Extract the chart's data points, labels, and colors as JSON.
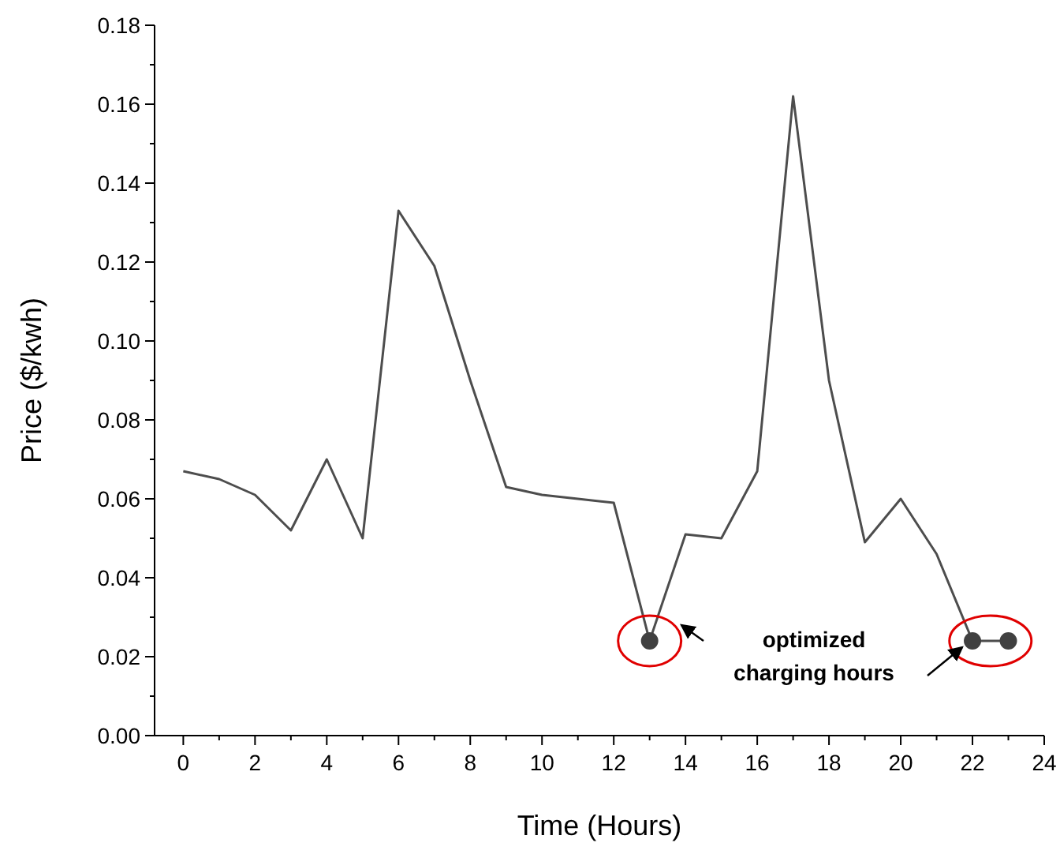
{
  "chart_data": {
    "type": "line",
    "xlabel": "Time (Hours)",
    "ylabel": "Price ($/kwh)",
    "x": [
      0,
      1,
      2,
      3,
      4,
      5,
      6,
      7,
      8,
      9,
      10,
      11,
      12,
      13,
      14,
      15,
      16,
      17,
      18,
      19,
      20,
      21,
      22,
      23
    ],
    "series": [
      {
        "color": "#4d4d4d",
        "values": [
          0.067,
          0.065,
          0.061,
          0.052,
          0.07,
          0.05,
          0.133,
          0.119,
          0.09,
          0.063,
          0.061,
          0.06,
          0.059,
          0.024,
          0.051,
          0.05,
          0.067,
          0.162,
          0.09,
          0.049,
          0.06,
          0.046,
          0.024,
          0.024
        ],
        "marker": "none"
      },
      {
        "type": "scatter",
        "color": "#404040",
        "x": [
          13,
          22,
          23
        ],
        "values": [
          0.024,
          0.024,
          0.024
        ],
        "marker": "circle"
      }
    ],
    "xlim": [
      -0.8,
      24
    ],
    "ylim": [
      0,
      0.18
    ],
    "xticks": [
      0,
      {
        "value": 1,
        "label": null
      },
      2,
      {
        "value": 3,
        "label": null
      },
      4,
      {
        "value": 5,
        "label": null
      },
      6,
      {
        "value": 7,
        "label": null
      },
      8,
      {
        "value": 9,
        "label": null
      },
      10,
      {
        "value": 11,
        "label": null
      },
      12,
      {
        "value": 13,
        "label": null
      },
      14,
      {
        "value": 15,
        "label": null
      },
      16,
      {
        "value": 17,
        "label": null
      },
      18,
      {
        "value": 19,
        "label": null
      },
      20,
      {
        "value": 21,
        "label": null
      },
      22,
      {
        "value": 23,
        "label": null
      },
      24
    ],
    "yticks": [
      {
        "value": 0,
        "label": "0.00"
      },
      {
        "value": 0.01,
        "label": null
      },
      {
        "value": 0.02,
        "label": "0.02"
      },
      {
        "value": 0.03,
        "label": null
      },
      {
        "value": 0.04,
        "label": "0.04"
      },
      {
        "value": 0.05,
        "label": null
      },
      {
        "value": 0.06,
        "label": "0.06"
      },
      {
        "value": 0.07,
        "label": null
      },
      {
        "value": 0.08,
        "label": "0.08"
      },
      {
        "value": 0.09,
        "label": null
      },
      {
        "value": 0.1,
        "label": "0.10"
      },
      {
        "value": 0.11,
        "label": null
      },
      {
        "value": 0.12,
        "label": "0.12"
      },
      {
        "value": 0.13,
        "label": null
      },
      {
        "value": 0.14,
        "label": "0.14"
      },
      {
        "value": 0.15,
        "label": null
      },
      {
        "value": 0.16,
        "label": "0.16"
      },
      {
        "value": 0.17,
        "label": null
      },
      {
        "value": 0.18,
        "label": "0.18"
      }
    ],
    "grid": false,
    "annotations": [
      "optimized\ncharging hours"
    ]
  }
}
